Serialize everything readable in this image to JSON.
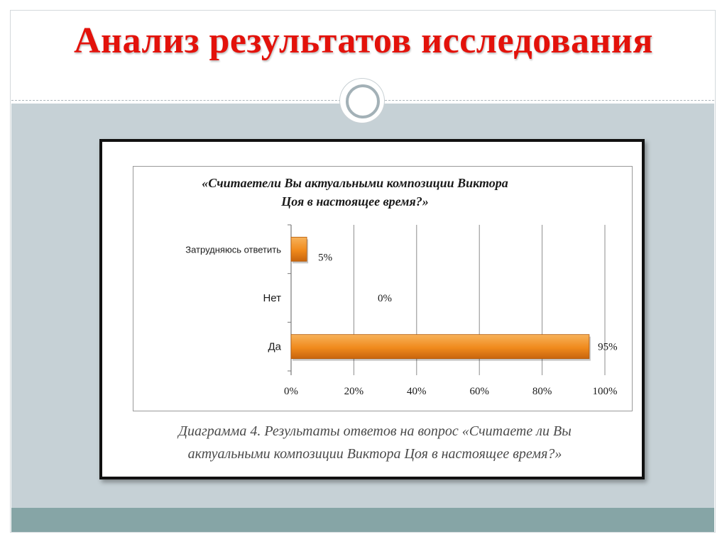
{
  "slide": {
    "title": "Анализ результатов исследования",
    "title_color": "#e3120b"
  },
  "caption": {
    "line1": "Диаграмма 4. Результаты ответов на вопрос «Считаете ли Вы",
    "line2": "актуальными композиции Виктора Цоя в настоящее время?»"
  },
  "chart_data": {
    "type": "bar",
    "orientation": "horizontal",
    "title_lines": [
      "«Считаетели Вы актуальными композиции Виктора",
      "Цоя в настоящее время?»"
    ],
    "categories": [
      "Затрудняюсь ответить",
      "Нет",
      "Да"
    ],
    "values": [
      5,
      0,
      95
    ],
    "data_labels": [
      "5%",
      "0%",
      "95%"
    ],
    "x_ticks": [
      "0%",
      "20%",
      "40%",
      "60%",
      "80%",
      "100%"
    ],
    "xlim": [
      0,
      100
    ],
    "grid": true,
    "bar_color": "#f08a1c",
    "xlabel": "",
    "ylabel": ""
  }
}
